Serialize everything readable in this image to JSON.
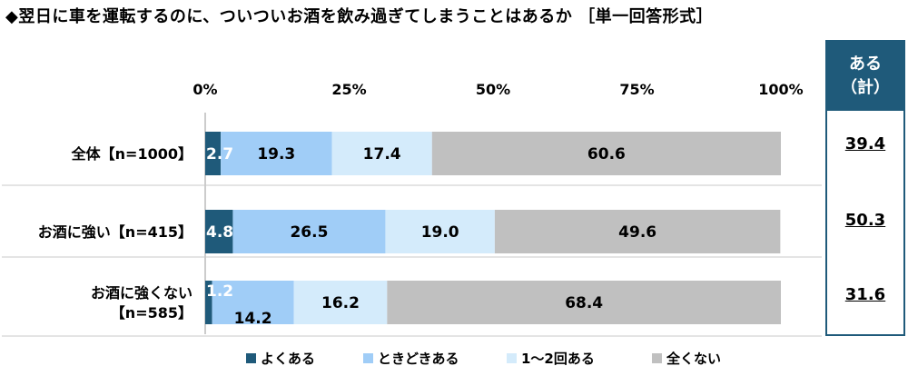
{
  "title": "◆翌日に車を運転するのに、ついついお酒を飲み過ぎてしまうことはあるか ［単一回答形式］",
  "summary": {
    "header_line1": "ある",
    "header_line2": "（計）",
    "values": [
      "39.4",
      "50.3",
      "31.6"
    ]
  },
  "chart_data": {
    "type": "bar",
    "orientation": "horizontal",
    "stacked": true,
    "percent_stacked": true,
    "xlim": [
      0,
      100
    ],
    "x_ticks": [
      "0%",
      "25%",
      "50%",
      "75%",
      "100%"
    ],
    "categories": [
      [
        "全体【n=1000】"
      ],
      [
        "お酒に強い【n=415】"
      ],
      [
        "お酒に強くない",
        "【n=585】"
      ]
    ],
    "series": [
      {
        "name": "よくある",
        "color": "#1f5a7a",
        "values": [
          2.7,
          4.8,
          1.2
        ]
      },
      {
        "name": "ときどきある",
        "color": "#a0cdf7",
        "values": [
          19.3,
          26.5,
          14.2
        ]
      },
      {
        "name": "1～2回ある",
        "color": "#d4ebfb",
        "values": [
          17.4,
          19.0,
          16.2
        ]
      },
      {
        "name": "全くない",
        "color": "#c0c0c0",
        "values": [
          60.6,
          49.6,
          68.4
        ]
      }
    ],
    "legend_position": "bottom"
  }
}
